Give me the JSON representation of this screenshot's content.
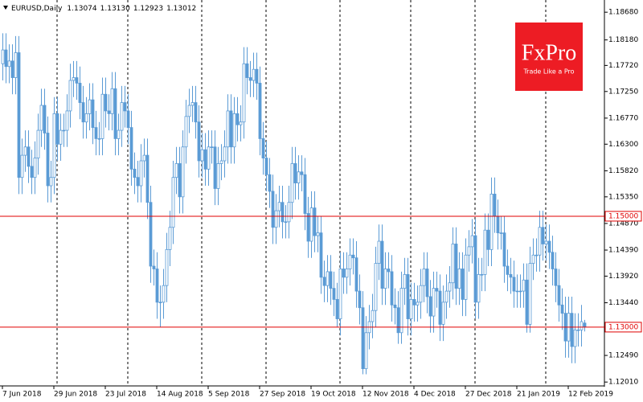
{
  "chart_data": {
    "type": "candlestick",
    "title": "EURUSD,Daily",
    "quote": {
      "open": "1.13074",
      "high": "1.13130",
      "low": "1.12923",
      "close": "1.13012"
    },
    "logo": {
      "name": "FxPro",
      "tagline": "Trade Like a Pro"
    },
    "color": "#5b9bd5",
    "categories": [
      "7 Jun 2018",
      null,
      null,
      null,
      null,
      null,
      null,
      null,
      null,
      null,
      null,
      null,
      null,
      null,
      null,
      null,
      "29 Jun 2018",
      null,
      null,
      null,
      null,
      null,
      null,
      null,
      null,
      null,
      null,
      null,
      null,
      null,
      null,
      null,
      "23 Jul 2018",
      null,
      null,
      null,
      null,
      null,
      null,
      null,
      null,
      null,
      null,
      null,
      null,
      null,
      null,
      null,
      "14 Aug 2018",
      null,
      null,
      null,
      null,
      null,
      null,
      null,
      null,
      null,
      null,
      null,
      null,
      null,
      null,
      null,
      "5 Sep 2018",
      null,
      null,
      null,
      null,
      null,
      null,
      null,
      null,
      null,
      null,
      null,
      null,
      null,
      null,
      null,
      "27 Sep 2018",
      null,
      null,
      null,
      null,
      null,
      null,
      null,
      null,
      null,
      null,
      null,
      null,
      null,
      null,
      null,
      "19 Oct 2018",
      null,
      null,
      null,
      null,
      null,
      null,
      null,
      null,
      null,
      null,
      null,
      null,
      null,
      null,
      null,
      "12 Nov 2018",
      null,
      null,
      null,
      null,
      null,
      null,
      null,
      null,
      null,
      null,
      null,
      null,
      null,
      null,
      null,
      "4 Dec 2018",
      null,
      null,
      null,
      null,
      null,
      null,
      null,
      null,
      null,
      null,
      null,
      null,
      null,
      null,
      null,
      "27 Dec 2018",
      null,
      null,
      null,
      null,
      null,
      null,
      null,
      null,
      null,
      null,
      null,
      null,
      null,
      null,
      null,
      "21 Jan 2019",
      null,
      null,
      null,
      null,
      null,
      null,
      null,
      null,
      null,
      null,
      null,
      null,
      null,
      null,
      null,
      "12 Feb 2019",
      null,
      null,
      null,
      null,
      null
    ],
    "open": [
      1.1775,
      1.18,
      1.177,
      1.178,
      1.175,
      1.1795,
      1.157,
      1.161,
      1.1625,
      1.159,
      1.157,
      1.1605,
      1.1655,
      1.17,
      1.165,
      1.1555,
      1.157,
      1.1685,
      1.163,
      1.1655,
      1.1655,
      1.169,
      1.1745,
      1.175,
      1.174,
      1.1705,
      1.167,
      1.1685,
      1.171,
      1.166,
      1.164,
      1.164,
      1.172,
      1.169,
      1.1685,
      1.173,
      1.164,
      1.1655,
      1.1705,
      1.169,
      1.166,
      1.1585,
      1.157,
      1.1555,
      1.16,
      1.161,
      1.1525,
      1.141,
      1.1405,
      1.1345,
      1.1345,
      1.1375,
      1.144,
      1.148,
      1.157,
      1.1595,
      1.1535,
      1.1625,
      1.168,
      1.17,
      1.1705,
      1.167,
      1.16,
      1.162,
      1.1585,
      1.1625,
      1.1625,
      1.155,
      1.1595,
      1.16,
      1.1625,
      1.169,
      1.1625,
      1.1685,
      1.1665,
      1.167,
      1.1775,
      1.175,
      1.1745,
      1.1765,
      1.174,
      1.164,
      1.1605,
      1.1575,
      1.1545,
      1.148,
      1.151,
      1.1525,
      1.149,
      1.149,
      1.1525,
      1.1595,
      1.156,
      1.158,
      1.1575,
      1.1505,
      1.1455,
      1.1515,
      1.1465,
      1.147,
      1.139,
      1.1375,
      1.14,
      1.137,
      1.135,
      1.1315,
      1.1405,
      1.139,
      1.1405,
      1.143,
      1.1425,
      1.1365,
      1.1335,
      1.1225,
      1.129,
      1.131,
      1.133,
      1.1415,
      1.1455,
      1.137,
      1.1405,
      1.14,
      1.134,
      1.1335,
      1.129,
      1.137,
      1.1395,
      1.1315,
      1.135,
      1.134,
      1.1345,
      1.1375,
      1.1405,
      1.1355,
      1.132,
      1.137,
      1.1365,
      1.1305,
      1.1345,
      1.1365,
      1.138,
      1.145,
      1.137,
      1.1405,
      1.135,
      1.143,
      1.1445,
      1.1465,
      1.1345,
      1.1395,
      1.1395,
      1.1475,
      1.144,
      1.154,
      1.15,
      1.147,
      1.147,
      1.141,
      1.1395,
      1.139,
      1.1365,
      1.1365,
      1.1365,
      1.1385,
      1.1305,
      1.1415,
      1.143,
      1.143,
      1.148,
      1.145,
      1.1455,
      1.1435,
      1.1405,
      1.1375,
      1.134,
      1.1325,
      1.1275,
      1.1325,
      1.1265,
      1.1295,
      1.1295,
      1.13074
    ],
    "high": [
      1.183,
      1.183,
      1.181,
      1.181,
      1.1825,
      1.1825,
      1.164,
      1.1655,
      1.1655,
      1.162,
      1.1635,
      1.1685,
      1.173,
      1.173,
      1.168,
      1.16,
      1.1715,
      1.1715,
      1.1685,
      1.1685,
      1.172,
      1.1775,
      1.178,
      1.178,
      1.177,
      1.1735,
      1.1715,
      1.174,
      1.174,
      1.169,
      1.167,
      1.175,
      1.175,
      1.172,
      1.176,
      1.176,
      1.1685,
      1.1735,
      1.1735,
      1.172,
      1.169,
      1.1615,
      1.16,
      1.163,
      1.164,
      1.164,
      1.1555,
      1.144,
      1.1435,
      1.1375,
      1.1405,
      1.147,
      1.151,
      1.16,
      1.1625,
      1.1625,
      1.1655,
      1.171,
      1.173,
      1.1735,
      1.1735,
      1.17,
      1.165,
      1.165,
      1.1655,
      1.1655,
      1.1655,
      1.1625,
      1.163,
      1.1655,
      1.172,
      1.172,
      1.1715,
      1.1715,
      1.17,
      1.1805,
      1.1805,
      1.178,
      1.1795,
      1.1795,
      1.177,
      1.167,
      1.1635,
      1.1605,
      1.1575,
      1.154,
      1.1555,
      1.1555,
      1.152,
      1.1555,
      1.1625,
      1.1625,
      1.161,
      1.161,
      1.1605,
      1.1535,
      1.1545,
      1.1545,
      1.15,
      1.15,
      1.142,
      1.143,
      1.143,
      1.14,
      1.138,
      1.1435,
      1.1435,
      1.1435,
      1.146,
      1.146,
      1.1455,
      1.1395,
      1.1365,
      1.132,
      1.134,
      1.136,
      1.1445,
      1.1485,
      1.1485,
      1.1435,
      1.1435,
      1.143,
      1.137,
      1.1365,
      1.14,
      1.1425,
      1.1425,
      1.138,
      1.138,
      1.1375,
      1.1405,
      1.1435,
      1.1435,
      1.1385,
      1.14,
      1.14,
      1.1395,
      1.1375,
      1.1395,
      1.141,
      1.148,
      1.148,
      1.1435,
      1.1435,
      1.146,
      1.1475,
      1.1495,
      1.1495,
      1.1425,
      1.1425,
      1.1505,
      1.1505,
      1.157,
      1.157,
      1.153,
      1.15,
      1.15,
      1.144,
      1.1425,
      1.142,
      1.1395,
      1.1395,
      1.1415,
      1.1415,
      1.1445,
      1.146,
      1.146,
      1.151,
      1.151,
      1.1485,
      1.1485,
      1.1465,
      1.1435,
      1.1405,
      1.137,
      1.1355,
      1.1355,
      1.1355,
      1.1325,
      1.1325,
      1.134,
      1.1313
    ],
    "low": [
      1.1745,
      1.174,
      1.174,
      1.172,
      1.172,
      1.154,
      1.154,
      1.158,
      1.156,
      1.154,
      1.154,
      1.1575,
      1.1625,
      1.162,
      1.1525,
      1.1525,
      1.154,
      1.16,
      1.16,
      1.1625,
      1.1625,
      1.166,
      1.1715,
      1.171,
      1.1675,
      1.164,
      1.164,
      1.1655,
      1.163,
      1.161,
      1.161,
      1.161,
      1.166,
      1.1655,
      1.1655,
      1.161,
      1.161,
      1.1625,
      1.166,
      1.163,
      1.1555,
      1.154,
      1.1525,
      1.1525,
      1.157,
      1.1495,
      1.138,
      1.1375,
      1.1315,
      1.13,
      1.1315,
      1.1345,
      1.141,
      1.145,
      1.154,
      1.1505,
      1.1505,
      1.1595,
      1.165,
      1.167,
      1.164,
      1.157,
      1.157,
      1.1555,
      1.1555,
      1.1595,
      1.152,
      1.152,
      1.1565,
      1.157,
      1.1595,
      1.1595,
      1.1595,
      1.1635,
      1.1635,
      1.164,
      1.172,
      1.1715,
      1.1715,
      1.171,
      1.161,
      1.1575,
      1.1545,
      1.1515,
      1.145,
      1.145,
      1.148,
      1.146,
      1.146,
      1.146,
      1.1495,
      1.153,
      1.153,
      1.1545,
      1.1475,
      1.1425,
      1.1425,
      1.1435,
      1.1435,
      1.136,
      1.1345,
      1.1345,
      1.134,
      1.132,
      1.13,
      1.1285,
      1.136,
      1.136,
      1.1375,
      1.1395,
      1.1335,
      1.1305,
      1.1215,
      1.1215,
      1.126,
      1.128,
      1.13,
      1.1385,
      1.134,
      1.134,
      1.137,
      1.131,
      1.1305,
      1.127,
      1.127,
      1.134,
      1.1285,
      1.1285,
      1.131,
      1.131,
      1.1315,
      1.1345,
      1.1325,
      1.129,
      1.129,
      1.1335,
      1.1275,
      1.1275,
      1.1315,
      1.1335,
      1.135,
      1.134,
      1.134,
      1.132,
      1.132,
      1.14,
      1.1415,
      1.1315,
      1.1315,
      1.1365,
      1.1365,
      1.141,
      1.141,
      1.147,
      1.144,
      1.144,
      1.138,
      1.1365,
      1.136,
      1.1335,
      1.1335,
      1.1335,
      1.1335,
      1.129,
      1.129,
      1.1385,
      1.14,
      1.14,
      1.142,
      1.142,
      1.1405,
      1.1375,
      1.1345,
      1.131,
      1.1295,
      1.1245,
      1.1245,
      1.1235,
      1.1235,
      1.1265,
      1.1265,
      1.12923
    ],
    "close": [
      1.18,
      1.177,
      1.178,
      1.175,
      1.1795,
      1.157,
      1.161,
      1.1625,
      1.159,
      1.157,
      1.1605,
      1.1655,
      1.17,
      1.165,
      1.1555,
      1.157,
      1.1685,
      1.163,
      1.1655,
      1.1655,
      1.169,
      1.1745,
      1.175,
      1.174,
      1.1705,
      1.167,
      1.1685,
      1.171,
      1.166,
      1.164,
      1.164,
      1.172,
      1.169,
      1.1685,
      1.173,
      1.164,
      1.1655,
      1.1705,
      1.169,
      1.166,
      1.1585,
      1.157,
      1.1555,
      1.16,
      1.161,
      1.1525,
      1.141,
      1.1405,
      1.1345,
      1.1345,
      1.1375,
      1.144,
      1.148,
      1.157,
      1.1595,
      1.1535,
      1.1625,
      1.168,
      1.17,
      1.1705,
      1.167,
      1.16,
      1.162,
      1.1585,
      1.1625,
      1.1625,
      1.155,
      1.1595,
      1.16,
      1.1625,
      1.169,
      1.1625,
      1.1685,
      1.1665,
      1.167,
      1.1775,
      1.175,
      1.1745,
      1.1765,
      1.174,
      1.164,
      1.1605,
      1.1575,
      1.1545,
      1.148,
      1.151,
      1.1525,
      1.149,
      1.149,
      1.1525,
      1.1595,
      1.156,
      1.158,
      1.1575,
      1.1505,
      1.1455,
      1.1515,
      1.1465,
      1.147,
      1.139,
      1.1375,
      1.14,
      1.137,
      1.135,
      1.1315,
      1.1405,
      1.139,
      1.1405,
      1.143,
      1.1425,
      1.1365,
      1.1335,
      1.1225,
      1.129,
      1.131,
      1.133,
      1.1415,
      1.1455,
      1.137,
      1.1405,
      1.14,
      1.134,
      1.1335,
      1.129,
      1.137,
      1.1395,
      1.1315,
      1.135,
      1.134,
      1.1345,
      1.1375,
      1.1405,
      1.1355,
      1.132,
      1.137,
      1.1365,
      1.1305,
      1.1345,
      1.1365,
      1.138,
      1.145,
      1.137,
      1.1405,
      1.135,
      1.143,
      1.1445,
      1.1465,
      1.1345,
      1.1395,
      1.1395,
      1.1475,
      1.144,
      1.154,
      1.15,
      1.147,
      1.147,
      1.141,
      1.1395,
      1.139,
      1.1365,
      1.1365,
      1.1365,
      1.1385,
      1.1305,
      1.1415,
      1.143,
      1.143,
      1.148,
      1.145,
      1.1455,
      1.1435,
      1.1405,
      1.1375,
      1.134,
      1.1325,
      1.1275,
      1.1325,
      1.1265,
      1.1295,
      1.1295,
      1.131,
      1.13012
    ],
    "ylim": [
      1.1194,
      1.189
    ],
    "yticks": [
      {
        "value": 1.1868,
        "label": "1.18680"
      },
      {
        "value": 1.1818,
        "label": "1.18180"
      },
      {
        "value": 1.1772,
        "label": "1.17720"
      },
      {
        "value": 1.1725,
        "label": "1.17250"
      },
      {
        "value": 1.1677,
        "label": "1.16770"
      },
      {
        "value": 1.163,
        "label": "1.16300"
      },
      {
        "value": 1.1582,
        "label": "1.15820"
      },
      {
        "value": 1.1535,
        "label": "1.15350"
      },
      {
        "value": 1.1487,
        "label": "1.14870"
      },
      {
        "value": 1.1439,
        "label": "1.14390"
      },
      {
        "value": 1.1392,
        "label": "1.13920"
      },
      {
        "value": 1.1344,
        "label": "1.13440"
      },
      {
        "value": 1.1249,
        "label": "1.12490"
      },
      {
        "value": 1.1201,
        "label": "1.12010"
      }
    ],
    "hlines": [
      {
        "value": 1.15,
        "label": "1.15000",
        "color": "#e00000"
      },
      {
        "value": 1.13,
        "label": "1.13000",
        "color": "#e00000"
      }
    ]
  }
}
